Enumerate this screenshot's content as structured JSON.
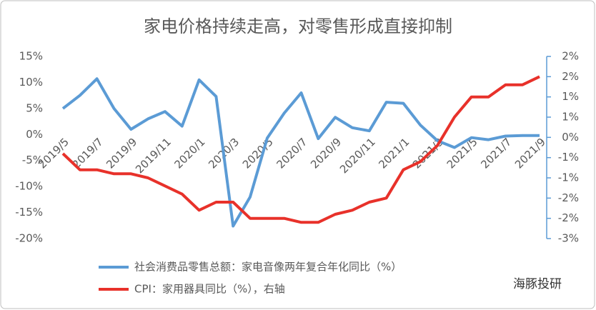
{
  "chart_data": {
    "type": "line",
    "title": "家电价格持续走高，对零售形成直接抑制",
    "source": "海豚投研",
    "categories": [
      "2019/5",
      null,
      "2019/7",
      null,
      "2019/9",
      null,
      "2019/11",
      null,
      "2020/1",
      null,
      "2020/3",
      null,
      "2020/5",
      null,
      "2020/7",
      null,
      "2020/9",
      null,
      "2020/11",
      null,
      "2021/1",
      null,
      "2021/3",
      null,
      "2021/5",
      null,
      "2021/7",
      null,
      "2021/9"
    ],
    "series": [
      {
        "name": "社会消费品零售总额：家电音像两年复合年化同比（%）",
        "color": "#5b9bd5",
        "values": [
          5.0,
          7.5,
          10.7,
          5.0,
          1.0,
          3.0,
          4.4,
          1.6,
          10.5,
          7.3,
          -17.6,
          -12.0,
          -0.7,
          4.1,
          8.0,
          -0.8,
          3.3,
          1.3,
          0.7,
          6.2,
          6.0,
          1.8,
          -1.2,
          -2.5,
          -0.6,
          -1.0,
          -0.3,
          -0.2,
          -0.2
        ]
      },
      {
        "name": "CPI：家用器具同比（%），右轴",
        "color": "#e8312a",
        "axis": "y2",
        "values": [
          -0.4,
          -0.8,
          -0.8,
          -0.9,
          -0.9,
          -1.0,
          -1.2,
          -1.4,
          -1.8,
          -1.6,
          -1.6,
          -2.0,
          -2.0,
          -2.0,
          -2.1,
          -2.1,
          -1.9,
          -1.8,
          -1.6,
          -1.5,
          -0.8,
          -0.6,
          -0.2,
          0.5,
          1.0,
          1.0,
          1.3,
          1.3,
          1.5
        ]
      }
    ],
    "ylim": [
      -20,
      15
    ],
    "yticks": [
      {
        "value": 15,
        "label": "15%"
      },
      {
        "value": 10,
        "label": "10%"
      },
      {
        "value": 5,
        "label": "5%"
      },
      {
        "value": 0,
        "label": "0%"
      },
      {
        "value": -5,
        "label": "-5%"
      },
      {
        "value": -10,
        "label": "-10%"
      },
      {
        "value": -15,
        "label": "-15%"
      },
      {
        "value": -20,
        "label": "-20%"
      }
    ],
    "y2lim": [
      -2.5,
      2
    ],
    "y2ticks": [
      {
        "value": 2,
        "label": "2%"
      },
      {
        "value": 1.5,
        "label": "2%"
      },
      {
        "value": 1,
        "label": "1%"
      },
      {
        "value": 0.5,
        "label": "1%"
      },
      {
        "value": 0,
        "label": "0%"
      },
      {
        "value": -0.5,
        "label": "-1%"
      },
      {
        "value": -1,
        "label": "-1%"
      },
      {
        "value": -1.5,
        "label": "-2%"
      },
      {
        "value": -2,
        "label": "-2%"
      },
      {
        "value": -2.5,
        "label": "-3%"
      }
    ]
  }
}
